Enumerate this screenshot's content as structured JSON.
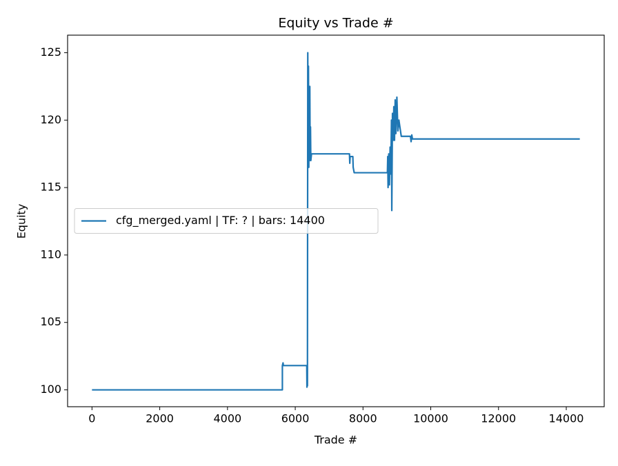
{
  "chart_data": {
    "type": "line",
    "title": "Equity vs Trade #",
    "xlabel": "Trade #",
    "ylabel": "Equity",
    "x": [
      0,
      5620,
      5620,
      5640,
      5650,
      6340,
      6345,
      6350,
      6360,
      6370,
      6380,
      6390,
      6400,
      6410,
      6420,
      6430,
      6440,
      6450,
      6460,
      6480,
      7600,
      7610,
      7620,
      7700,
      7710,
      7740,
      8720,
      8730,
      8740,
      8760,
      8780,
      8800,
      8820,
      8840,
      8850,
      8870,
      8890,
      8910,
      8930,
      8950,
      8970,
      9000,
      9030,
      9060,
      9100,
      9130,
      9400,
      9420,
      9440,
      9460,
      14400
    ],
    "series": [
      {
        "name": "cfg_merged.yaml | TF: ? | bars: 14400",
        "color": "#1f77b4",
        "values": [
          100,
          100,
          101.8,
          102,
          101.8,
          101.8,
          100.2,
          101.8,
          100.3,
          125.0,
          117,
          124,
          116.5,
          121,
          117,
          122.5,
          117.2,
          119.5,
          117,
          117.5,
          117.5,
          116.8,
          117.3,
          117.3,
          116.5,
          116.1,
          116.1,
          117.3,
          115.0,
          117.5,
          115.2,
          118,
          116,
          120,
          113.3,
          120.5,
          118.5,
          121,
          118.5,
          121.5,
          119,
          121.7,
          119.2,
          120,
          119.3,
          118.8,
          118.8,
          118.4,
          118.9,
          118.6,
          118.6
        ]
      }
    ],
    "xlim": [
      -720,
      15120
    ],
    "ylim": [
      98.75,
      126.3
    ],
    "xticks": [
      0,
      2000,
      4000,
      6000,
      8000,
      10000,
      12000,
      14000
    ],
    "yticks": [
      100,
      105,
      110,
      115,
      120,
      125
    ],
    "legend": "center left",
    "grid": false
  }
}
